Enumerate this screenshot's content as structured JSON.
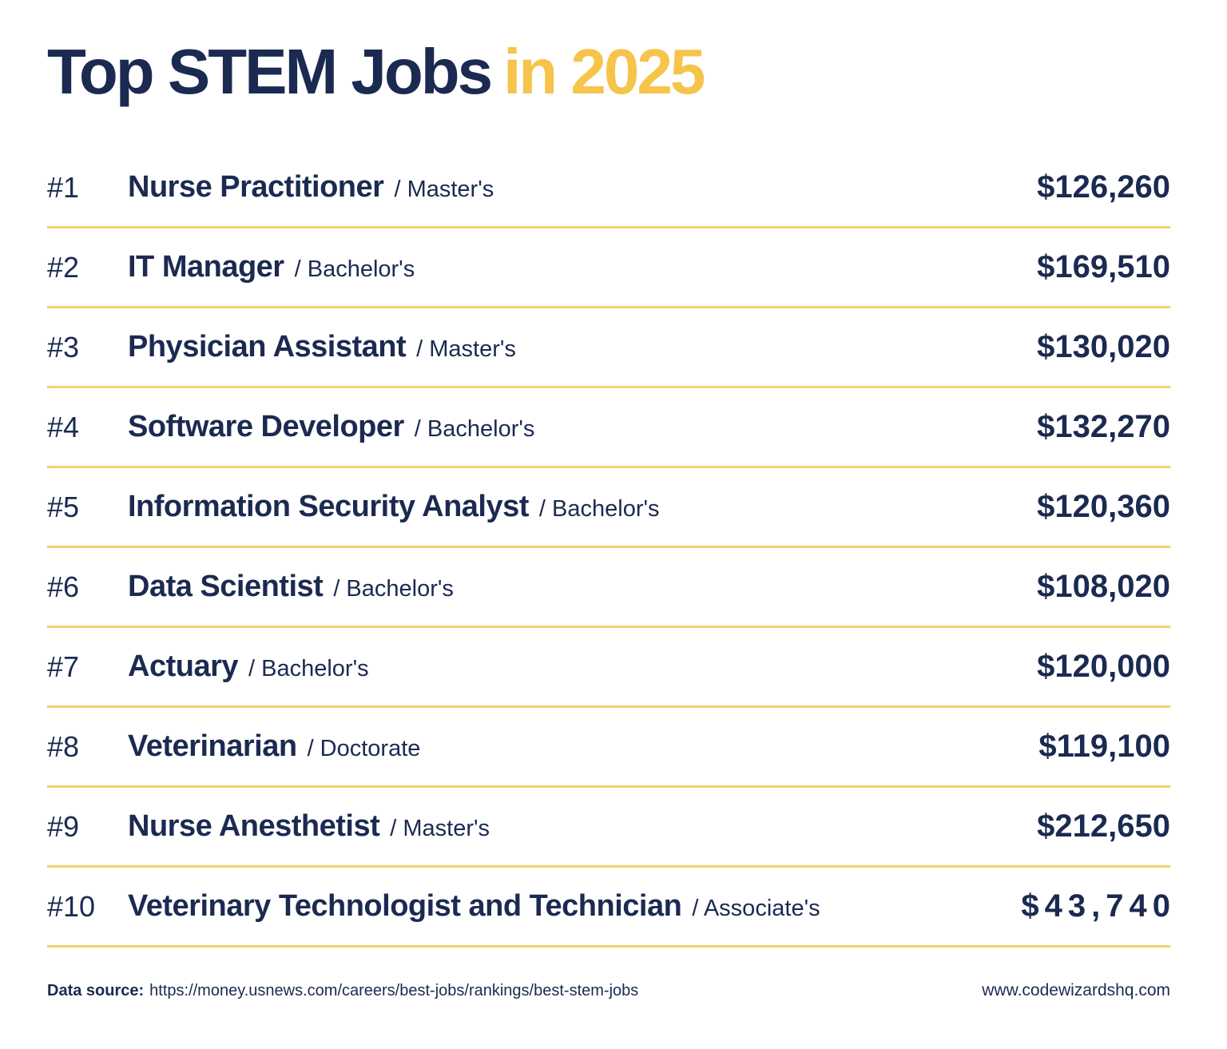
{
  "title": {
    "primary": "Top STEM Jobs",
    "accent": "in 2025"
  },
  "colors": {
    "navy": "#1b2a51",
    "accent_yellow": "#f6c44a",
    "divider_yellow": "#f8cf72",
    "background": "#ffffff"
  },
  "jobs": [
    {
      "rank": "#1",
      "title": "Nurse Practitioner",
      "degree": "/ Master's",
      "salary": "$126,260",
      "tracked": false
    },
    {
      "rank": "#2",
      "title": "IT Manager",
      "degree": "/ Bachelor's",
      "salary": "$169,510",
      "tracked": false
    },
    {
      "rank": "#3",
      "title": "Physician Assistant",
      "degree": "/ Master's",
      "salary": "$130,020",
      "tracked": false
    },
    {
      "rank": "#4",
      "title": "Software Developer",
      "degree": "/ Bachelor's",
      "salary": "$132,270",
      "tracked": false
    },
    {
      "rank": "#5",
      "title": "Information Security Analyst",
      "degree": "/ Bachelor's",
      "salary": "$120,360",
      "tracked": false
    },
    {
      "rank": "#6",
      "title": "Data Scientist",
      "degree": "/ Bachelor's",
      "salary": "$108,020",
      "tracked": false
    },
    {
      "rank": "#7",
      "title": "Actuary",
      "degree": "/ Bachelor's",
      "salary": "$120,000",
      "tracked": false
    },
    {
      "rank": "#8",
      "title": "Veterinarian",
      "degree": "/ Doctorate",
      "salary": "$119,100",
      "tracked": false
    },
    {
      "rank": "#9",
      "title": "Nurse Anesthetist",
      "degree": "/ Master's",
      "salary": "$212,650",
      "tracked": false
    },
    {
      "rank": "#10",
      "title": "Veterinary Technologist and Technician",
      "degree": "/ Associate's",
      "salary": "$43,740",
      "tracked": true
    }
  ],
  "footer": {
    "source_label": "Data source:",
    "source_url": "https://money.usnews.com/careers/best-jobs/rankings/best-stem-jobs",
    "website": "www.codewizardshq.com"
  }
}
